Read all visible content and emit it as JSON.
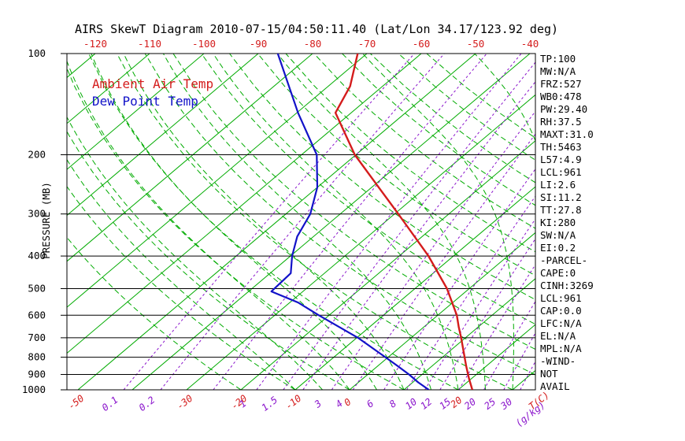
{
  "colors": {
    "background": "#ffffff",
    "temperature_red": "#d41c1c",
    "dew_point_blue": "#1212c8",
    "isotherm_green": "#00ab00",
    "adiabat_green": "#00ab00",
    "mixing_ratio_purple": "#8a14cc",
    "axis_black": "#000000"
  },
  "stats_panel": {
    "lines": [
      "TP:100",
      "MW:N/A",
      "FRZ:527",
      "WB0:478",
      "PW:29.40",
      "RH:37.5",
      "MAXT:31.0",
      "TH:5463",
      "L57:4.9",
      "LCL:961",
      "LI:2.6",
      "SI:11.2",
      "TT:27.8",
      "KI:280",
      "SW:N/A",
      "EI:0.2",
      "-PARCEL-",
      "CAPE:0",
      "CINH:3269",
      "LCL:961",
      "CAP:0.0",
      "LFC:N/A",
      "EL:N/A",
      "MPL:N/A",
      "-WIND-",
      "NOT",
      "AVAIL"
    ]
  },
  "chart_data": {
    "type": "line",
    "variant": "skew-t-log-p",
    "title": "AIRS SkewT Diagram 2010-07-15/04:50:11.40 (Lat/Lon 34.17/123.92 deg)",
    "y_axis": {
      "label": "PRESSURE (MB)",
      "scale": "log",
      "range_mb": [
        100,
        1000
      ],
      "ticks_mb": [
        100,
        200,
        300,
        400,
        500,
        600,
        700,
        800,
        900,
        1000
      ]
    },
    "x_axis": {
      "label": "T(C)",
      "skewed": true,
      "top_tick_labels_c": [
        -120,
        -110,
        -100,
        -90,
        -80,
        -70,
        -60,
        -50,
        -40
      ],
      "bottom_tick_labels_c": [
        -50,
        -30,
        -20,
        -10,
        0,
        20
      ],
      "isotherm_interval_c": 10,
      "isotherm_range_c": [
        -150,
        30
      ]
    },
    "mixing_ratio_axis": {
      "label": "(g/kg)",
      "labeled_values_gkg": [
        0.1,
        0.2,
        1,
        1.5,
        3,
        4,
        6,
        8,
        10,
        12,
        15,
        20,
        25,
        30
      ],
      "line_values_gkg": [
        0.1,
        0.2,
        0.5,
        1,
        1.5,
        2,
        3,
        4,
        6,
        8,
        10,
        12,
        15,
        20,
        25,
        30
      ]
    },
    "dry_adiabats": {
      "theta_min_c": -20,
      "theta_max_c": 140,
      "step_c": 10
    },
    "moist_adiabats": {
      "surface_temp_min_c": -10,
      "surface_temp_max_c": 40,
      "step_c": 5
    },
    "series": [
      {
        "name": "Ambient Air Temp",
        "color_key": "temperature_red",
        "points_p_t": [
          [
            1000,
            22.6
          ],
          [
            925,
            19.5
          ],
          [
            850,
            16.3
          ],
          [
            700,
            9.2
          ],
          [
            650,
            6.4
          ],
          [
            600,
            3.5
          ],
          [
            500,
            -4.1
          ],
          [
            400,
            -14.6
          ],
          [
            300,
            -29.3
          ],
          [
            250,
            -38.7
          ],
          [
            200,
            -50.2
          ],
          [
            150,
            -62.9
          ],
          [
            125,
            -66.0
          ],
          [
            100,
            -71.7
          ]
        ]
      },
      {
        "name": "Dew Point Temp",
        "color_key": "dew_point_blue",
        "points_p_t": [
          [
            1000,
            14.6
          ],
          [
            950,
            11.0
          ],
          [
            900,
            7.6
          ],
          [
            850,
            3.7
          ],
          [
            800,
            -0.5
          ],
          [
            700,
            -9.8
          ],
          [
            600,
            -21.9
          ],
          [
            550,
            -28.5
          ],
          [
            510,
            -35.8
          ],
          [
            450,
            -36.2
          ],
          [
            400,
            -39.7
          ],
          [
            350,
            -43.0
          ],
          [
            300,
            -45.5
          ],
          [
            250,
            -50.0
          ],
          [
            200,
            -57.2
          ],
          [
            150,
            -69.8
          ],
          [
            100,
            -86.4
          ]
        ]
      }
    ]
  }
}
